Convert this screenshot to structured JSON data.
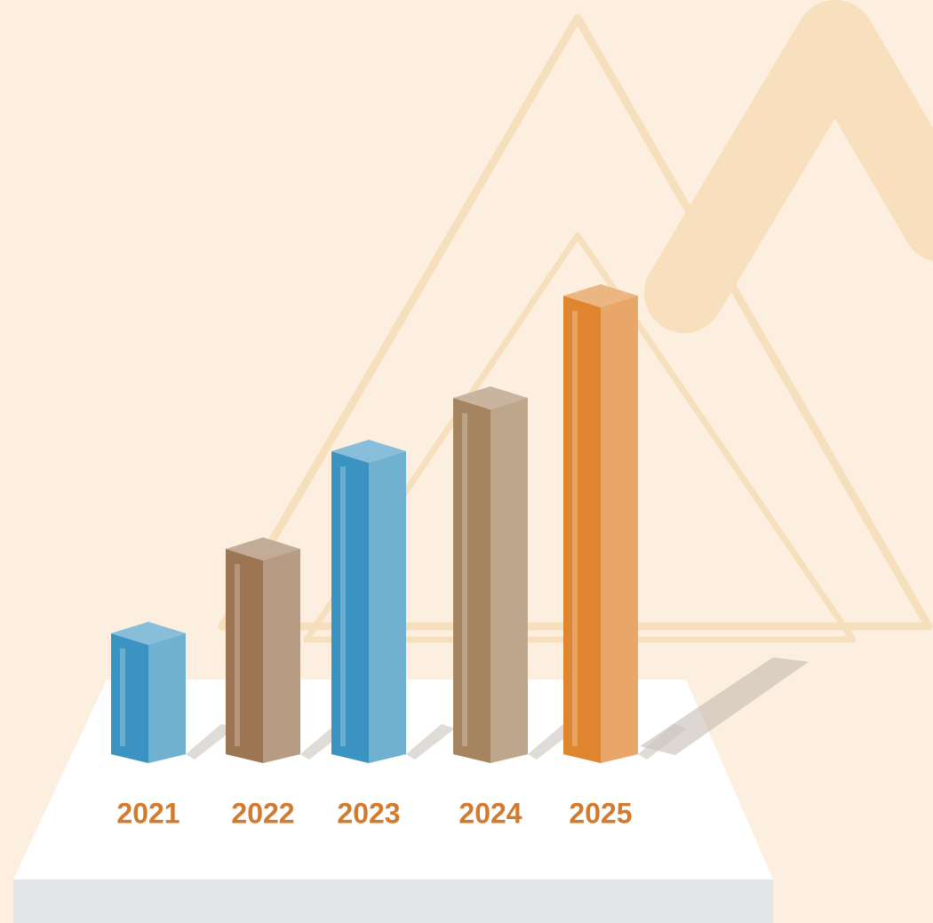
{
  "chart_data": {
    "type": "bar",
    "categories": [
      "2021",
      "2022",
      "2023",
      "2024",
      "2025"
    ],
    "values": [
      155,
      250,
      360,
      420,
      535
    ],
    "colors": [
      "#3a93c0",
      "#9c7552",
      "#3a93c0",
      "#a5845f",
      "#e0852f"
    ],
    "ylim": [
      0,
      600
    ]
  }
}
